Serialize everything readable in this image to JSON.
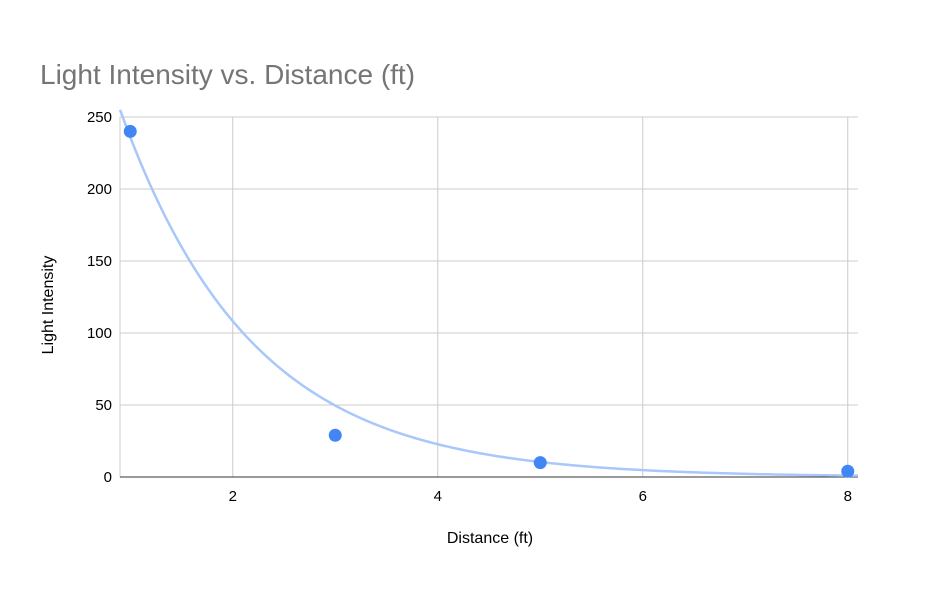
{
  "chart_data": {
    "type": "scatter",
    "title": "Light Intensity vs. Distance (ft)",
    "xlabel": "Distance (ft)",
    "ylabel": "Light Intensity",
    "xlim": [
      0.9,
      8.1
    ],
    "ylim": [
      0,
      250
    ],
    "x_ticks": [
      2,
      4,
      6,
      8
    ],
    "y_ticks": [
      0,
      50,
      100,
      150,
      200,
      250
    ],
    "grid": true,
    "legend": "none",
    "series": [
      {
        "x": [
          1,
          3,
          5,
          8
        ],
        "y": [
          240,
          29,
          10,
          4
        ],
        "color": "#4285f4"
      }
    ],
    "trendline": {
      "type": "exponential",
      "a": 515,
      "b": -0.78,
      "color": "#a8c7fa"
    }
  }
}
